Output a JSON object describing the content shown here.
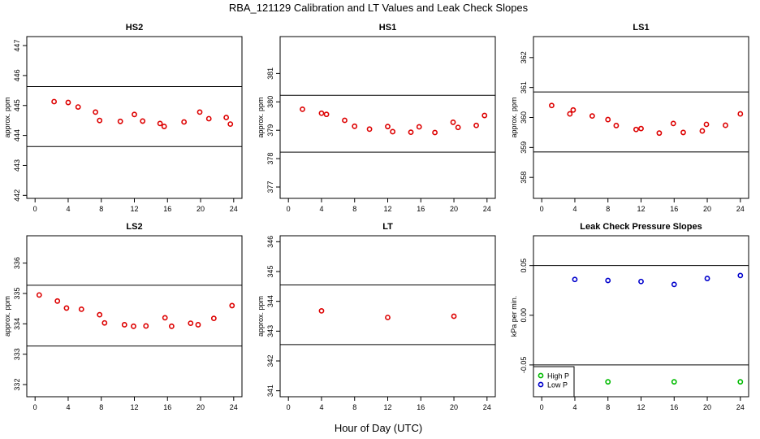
{
  "figure": {
    "title": "RBA_121129  Calibration and LT Values and Leak Check Slopes",
    "xlabel": "Hour of Day (UTC)"
  },
  "chart_data": [
    {
      "type": "scatter",
      "title": "HS2",
      "ylabel": "approx. ppm",
      "xlim": [
        -1,
        25
      ],
      "ylim": [
        441.9,
        447.3
      ],
      "xticks": [
        0,
        4,
        8,
        12,
        16,
        20,
        24
      ],
      "yticks": [
        442,
        443,
        444,
        445,
        446,
        447
      ],
      "hlines": [
        445.63,
        443.63
      ],
      "marker_color": "#dd0000",
      "series": [
        {
          "x": [
            2.3,
            4.0,
            5.2,
            7.3,
            7.8,
            10.3,
            12.0,
            13.0,
            15.1,
            15.6,
            18.0,
            19.9,
            21.0,
            23.1,
            23.6
          ],
          "y": [
            445.13,
            445.1,
            444.95,
            444.78,
            444.5,
            444.47,
            444.7,
            444.48,
            444.4,
            444.3,
            444.45,
            444.78,
            444.56,
            444.6,
            444.38
          ]
        }
      ]
    },
    {
      "type": "scatter",
      "title": "HS1",
      "ylabel": "approx. ppm",
      "xlim": [
        -1,
        25
      ],
      "ylim": [
        376.6,
        382.3
      ],
      "xticks": [
        0,
        4,
        8,
        12,
        16,
        20,
        24
      ],
      "yticks": [
        377,
        378,
        379,
        380,
        381
      ],
      "hlines": [
        380.23,
        378.23
      ],
      "marker_color": "#dd0000",
      "series": [
        {
          "x": [
            1.7,
            4.0,
            4.6,
            6.8,
            8.0,
            9.8,
            12.0,
            12.6,
            14.8,
            15.8,
            17.7,
            19.9,
            20.5,
            22.7,
            23.7
          ],
          "y": [
            379.74,
            379.6,
            379.56,
            379.35,
            379.14,
            379.04,
            379.13,
            378.95,
            378.93,
            379.12,
            378.92,
            379.28,
            379.1,
            379.17,
            379.52
          ]
        }
      ]
    },
    {
      "type": "scatter",
      "title": "LS1",
      "ylabel": "approx. ppm",
      "xlim": [
        -1,
        25
      ],
      "ylim": [
        357.3,
        362.7
      ],
      "xticks": [
        0,
        4,
        8,
        12,
        16,
        20,
        24
      ],
      "yticks": [
        358,
        359,
        360,
        361,
        362
      ],
      "hlines": [
        360.85,
        358.85
      ],
      "marker_color": "#dd0000",
      "series": [
        {
          "x": [
            1.2,
            3.4,
            3.8,
            6.1,
            8.0,
            9.0,
            11.4,
            12.0,
            14.2,
            15.9,
            17.1,
            19.4,
            19.9,
            22.2,
            24.0
          ],
          "y": [
            360.4,
            360.12,
            360.25,
            360.05,
            359.93,
            359.73,
            359.6,
            359.63,
            359.48,
            359.8,
            359.5,
            359.55,
            359.77,
            359.74,
            360.12
          ]
        }
      ]
    },
    {
      "type": "scatter",
      "title": "LS2",
      "ylabel": "approx. ppm",
      "xlim": [
        -1,
        25
      ],
      "ylim": [
        331.6,
        336.9
      ],
      "xticks": [
        0,
        4,
        8,
        12,
        16,
        20,
        24
      ],
      "yticks": [
        332,
        333,
        334,
        335,
        336
      ],
      "hlines": [
        335.27,
        333.27
      ],
      "marker_color": "#dd0000",
      "series": [
        {
          "x": [
            0.5,
            2.7,
            3.8,
            5.6,
            7.8,
            8.4,
            10.8,
            11.9,
            13.4,
            15.7,
            16.5,
            18.8,
            19.7,
            21.6,
            23.8
          ],
          "y": [
            334.95,
            334.75,
            334.52,
            334.48,
            334.3,
            334.03,
            333.97,
            333.92,
            333.93,
            334.2,
            333.92,
            334.02,
            333.97,
            334.18,
            334.6
          ]
        }
      ]
    },
    {
      "type": "scatter",
      "title": "LT",
      "ylabel": "approx. ppm",
      "xlim": [
        -1,
        25
      ],
      "ylim": [
        340.8,
        346.2
      ],
      "xticks": [
        0,
        4,
        8,
        12,
        16,
        20,
        24
      ],
      "yticks": [
        341,
        342,
        343,
        344,
        345,
        346
      ],
      "hlines": [
        344.55,
        342.55
      ],
      "marker_color": "#dd0000",
      "series": [
        {
          "x": [
            4.0,
            12.0,
            20.0
          ],
          "y": [
            343.68,
            343.46,
            343.5
          ]
        }
      ]
    },
    {
      "type": "scatter",
      "title": "Leak Check Pressure Slopes",
      "ylabel": "kPa per min.",
      "xlim": [
        -1,
        25
      ],
      "ylim": [
        -0.082,
        0.08
      ],
      "xticks": [
        0,
        4,
        8,
        12,
        16,
        20,
        24
      ],
      "yticks": [
        -0.05,
        0.0,
        0.05
      ],
      "ytick_labels": [
        "-0.05",
        "0.00",
        "0.05"
      ],
      "hlines": [
        0.05,
        -0.05
      ],
      "legend": {
        "position": "bottom-left"
      },
      "series": [
        {
          "name": "High P",
          "color": "#00bb00",
          "x": [
            8.0,
            16.0,
            24.0
          ],
          "y": [
            -0.067,
            -0.067,
            -0.067
          ]
        },
        {
          "name": "Low P",
          "color": "#0000cc",
          "x": [
            4.0,
            8.0,
            12.0,
            16.0,
            20.0,
            24.0
          ],
          "y": [
            0.036,
            0.035,
            0.034,
            0.031,
            0.037,
            0.04
          ]
        }
      ]
    }
  ]
}
